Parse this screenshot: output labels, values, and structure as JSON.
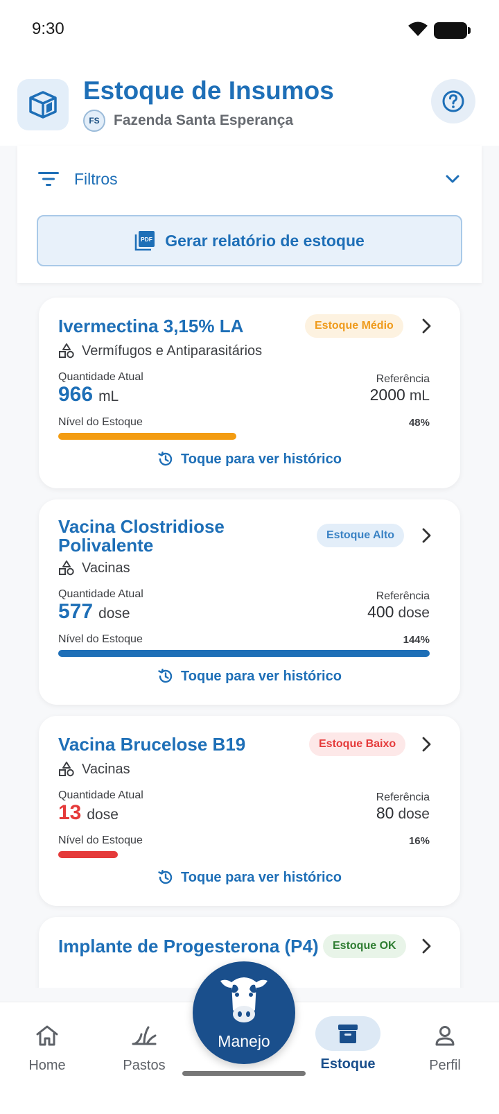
{
  "status_bar": {
    "time": "9:30"
  },
  "header": {
    "title": "Estoque de Insumos",
    "farm_initials": "FS",
    "farm_name": "Fazenda Santa Esperança"
  },
  "filters": {
    "label": "Filtros",
    "report_button": "Gerar relatório de estoque"
  },
  "items": [
    {
      "name": "Ivermectina 3,15% LA",
      "status": "Estoque Médio",
      "category": "Vermífugos e Antiparasitários",
      "qty_label": "Quantidade Atual",
      "qty": "966",
      "unit": "mL",
      "ref_label": "Referência",
      "ref": "2000",
      "level_label": "Nível do Estoque",
      "level_pct_text": "48%",
      "level_fraction": 0.48,
      "level_color": "#f39c12",
      "history": "Toque para ver histórico"
    },
    {
      "name": "Vacina Clostridiose Polivalente",
      "status": "Estoque Alto",
      "category": "Vacinas",
      "qty_label": "Quantidade Atual",
      "qty": "577",
      "unit": "dose",
      "ref_label": "Referência",
      "ref": "400",
      "level_label": "Nível do Estoque",
      "level_pct_text": "144%",
      "level_fraction": 1.0,
      "level_color": "#1e6fb7",
      "history": "Toque para ver histórico"
    },
    {
      "name": "Vacina Brucelose B19",
      "status": "Estoque Baixo",
      "category": "Vacinas",
      "qty_label": "Quantidade Atual",
      "qty": "13",
      "unit": "dose",
      "ref_label": "Referência",
      "ref": "80",
      "level_label": "Nível do Estoque",
      "level_pct_text": "16%",
      "level_fraction": 0.16,
      "level_color": "#e53a3a",
      "history": "Toque para ver histórico"
    },
    {
      "name": "Implante de Progesterona (P4)",
      "status": "Estoque OK"
    }
  ],
  "bottom_nav": {
    "home": "Home",
    "pastos": "Pastos",
    "manejo": "Manejo",
    "estoque": "Estoque",
    "perfil": "Perfil"
  },
  "colors": {
    "primary": "#1e6fb7",
    "dark_primary": "#1a4f8c",
    "warning": "#f39c12",
    "danger": "#e53a3a",
    "success": "#2f7d32"
  }
}
